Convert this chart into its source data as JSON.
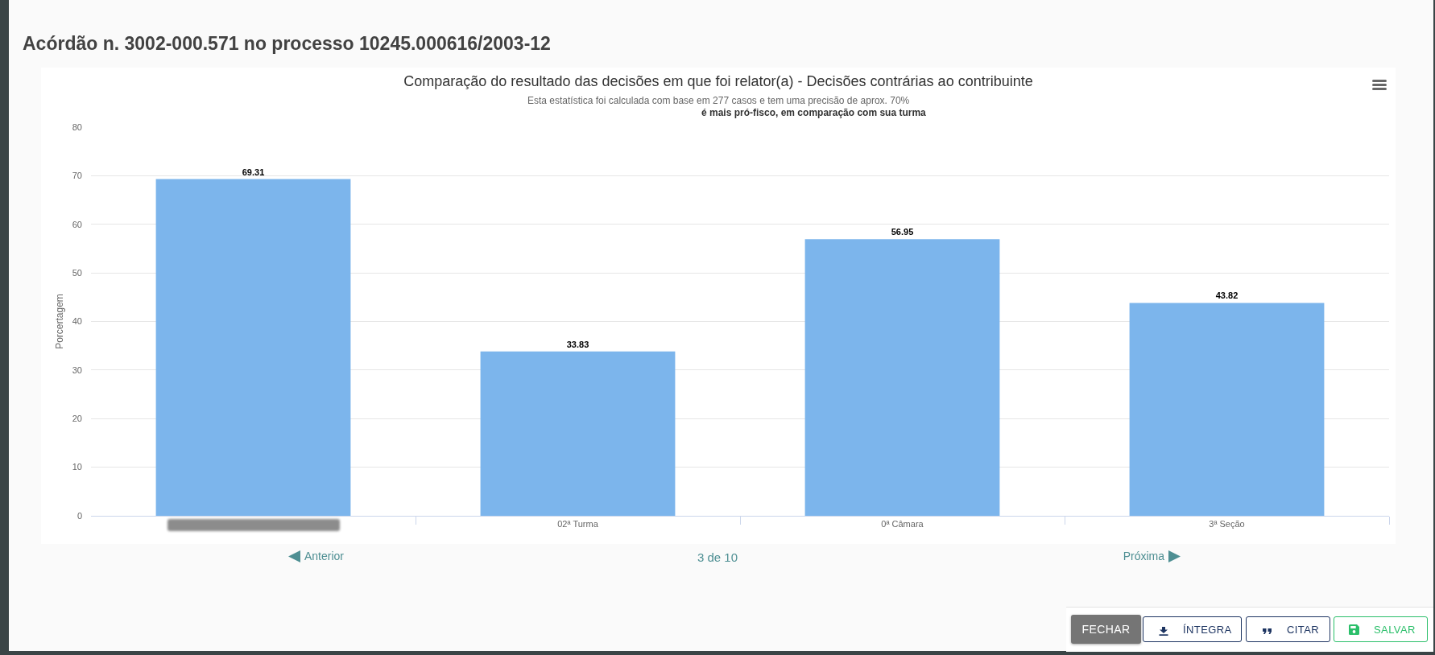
{
  "chart_data": {
    "type": "bar",
    "title": "Comparação do resultado das decisões em que foi relator(a) - Decisões contrárias ao contribuinte",
    "subtitle": "Esta estatística foi calculada com base em 277 casos e tem uma precisão de aprox. 70%",
    "ylabel": "Porcertagem",
    "annotations": [
      "Acórdão n. 3002-000.571 no processo 10245.000616/2003-12",
      "é mais pró-fisco, em comparação com sua turma",
      "Anterior",
      "3 de 10",
      "Próxima",
      "FECHAR",
      "ÍNTEGRA",
      "CITAR",
      "SALVAR"
    ],
    "categories": [
      null,
      "02ª Turma",
      "0ª Câmara",
      "3ª Seção"
    ],
    "values": [
      69.31,
      33.83,
      56.95,
      43.82
    ],
    "color": "#7cb5ec",
    "ylim": [
      0,
      80
    ],
    "yticks": [
      0,
      10,
      20,
      30,
      40,
      50,
      60,
      70,
      80
    ],
    "grid": "y",
    "data_labels": true
  }
}
